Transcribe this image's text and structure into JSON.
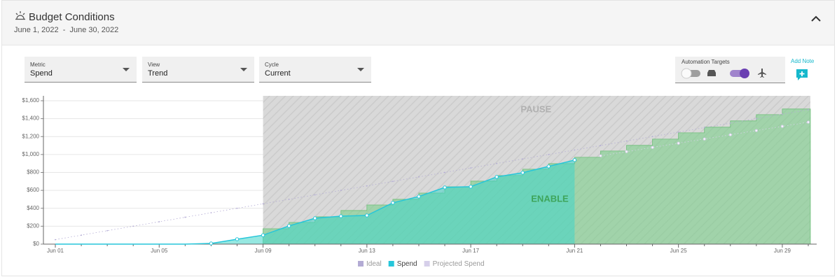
{
  "header": {
    "title": "Budget Conditions",
    "dates": "June 1, 2022  -  June 30, 2022"
  },
  "controls": {
    "metric": {
      "label": "Metric",
      "value": "Spend"
    },
    "view": {
      "label": "View",
      "value": "Trend"
    },
    "cycle": {
      "label": "Cycle",
      "value": "Current"
    },
    "automation_targets": "Automation Targets",
    "add_note": "Add Note"
  },
  "chart_data": {
    "type": "line",
    "categories": [
      "Jun 01",
      null,
      null,
      null,
      "Jun 05",
      null,
      null,
      null,
      "Jun 09",
      null,
      null,
      null,
      "Jun 13",
      null,
      null,
      null,
      "Jun 17",
      null,
      null,
      null,
      "Jun 21",
      null,
      null,
      null,
      "Jun 25",
      null,
      null,
      null,
      "Jun 29",
      null
    ],
    "series": [
      {
        "name": "Ideal",
        "color": "#b3abd4",
        "values": [
          50,
          100,
          150,
          200,
          250,
          300,
          350,
          400,
          450,
          500,
          550,
          600,
          650,
          700,
          750,
          800,
          850,
          900,
          950,
          1000,
          1050,
          1100,
          1150,
          1200,
          1250,
          1300,
          1350,
          1400,
          1450,
          1500
        ]
      },
      {
        "name": "Spend",
        "color": "#26c6da",
        "values": [
          0,
          0,
          0,
          0,
          0,
          0,
          8,
          55,
          100,
          203,
          289,
          312,
          320,
          461,
          531,
          633,
          641,
          750,
          797,
          867,
          938,
          null,
          null,
          null,
          null,
          null,
          null,
          null,
          null,
          null
        ]
      },
      {
        "name": "Projected Spend",
        "color": "#d6cfea",
        "values": [
          null,
          null,
          null,
          null,
          null,
          null,
          null,
          null,
          null,
          null,
          null,
          null,
          null,
          null,
          null,
          null,
          null,
          null,
          null,
          null,
          null,
          985,
          1032,
          1079,
          1126,
          1173,
          1220,
          1267,
          1314,
          1361
        ]
      }
    ],
    "zones": {
      "pause": "PAUSE",
      "enable": "ENABLE",
      "threshold": [
        null,
        null,
        null,
        null,
        null,
        null,
        null,
        null,
        172,
        242,
        305,
        375,
        437,
        500,
        570,
        640,
        703,
        766,
        836,
        898,
        969,
        1039,
        1102,
        1172,
        1242,
        1305,
        1375,
        1445,
        1508,
        1508
      ]
    },
    "ylim": [
      0,
      1600
    ],
    "yticks": [
      {
        "value": 0,
        "label": "$0"
      },
      {
        "value": 200,
        "label": "$200"
      },
      {
        "value": 400,
        "label": "$400"
      },
      {
        "value": 600,
        "label": "$600"
      },
      {
        "value": 800,
        "label": "$800"
      },
      {
        "value": 1000,
        "label": "$1,000"
      },
      {
        "value": 1200,
        "label": "$1,200"
      },
      {
        "value": 1400,
        "label": "$1,400"
      },
      {
        "value": 1600,
        "label": "$1,600"
      }
    ],
    "grid": true,
    "legend": "bottom"
  }
}
